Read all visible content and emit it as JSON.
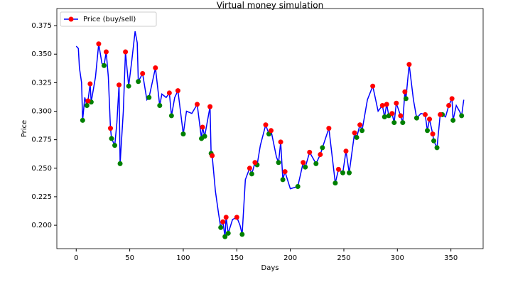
{
  "chart_data": {
    "type": "line",
    "title": "Virtual money simulation",
    "x_label": "Days",
    "y_label": "Price",
    "series": [
      {
        "name": "Price (buy/sell)",
        "color": "#0000ff",
        "x": [
          0,
          2,
          3,
          5,
          6,
          8,
          10,
          11,
          13,
          14,
          18,
          21,
          24,
          26,
          28,
          30,
          32,
          33,
          36,
          38,
          40,
          41,
          44,
          46,
          49,
          52,
          55,
          57,
          58,
          62,
          66,
          68,
          71,
          74,
          78,
          80,
          84,
          87,
          89,
          92,
          95,
          100,
          103,
          108,
          113,
          117,
          118,
          120,
          125,
          126,
          127,
          130,
          133,
          135,
          137,
          139,
          140,
          142,
          146,
          150,
          153,
          155,
          158,
          162,
          164,
          167,
          169,
          172,
          177,
          180,
          182,
          187,
          189,
          191,
          193,
          195,
          200,
          207,
          212,
          214,
          218,
          224,
          228,
          230,
          236,
          242,
          245,
          249,
          252,
          255,
          260,
          262,
          265,
          267,
          272,
          277,
          282,
          286,
          288,
          290,
          292,
          295,
          297,
          299,
          303,
          305,
          307,
          308,
          311,
          315,
          318,
          322,
          326,
          328,
          330,
          333,
          334,
          337,
          340,
          342,
          345,
          348,
          351,
          352,
          355,
          358,
          360,
          362
        ],
        "values": [
          0.357,
          0.355,
          0.338,
          0.325,
          0.292,
          0.312,
          0.305,
          0.309,
          0.324,
          0.308,
          0.33,
          0.359,
          0.342,
          0.34,
          0.352,
          0.33,
          0.285,
          0.276,
          0.27,
          0.29,
          0.323,
          0.254,
          0.3,
          0.352,
          0.322,
          0.345,
          0.37,
          0.36,
          0.326,
          0.333,
          0.31,
          0.312,
          0.325,
          0.338,
          0.305,
          0.315,
          0.312,
          0.316,
          0.296,
          0.312,
          0.318,
          0.28,
          0.3,
          0.298,
          0.306,
          0.276,
          0.286,
          0.278,
          0.304,
          0.263,
          0.261,
          0.23,
          0.21,
          0.198,
          0.203,
          0.19,
          0.207,
          0.193,
          0.205,
          0.207,
          0.2,
          0.192,
          0.24,
          0.25,
          0.245,
          0.255,
          0.253,
          0.27,
          0.288,
          0.28,
          0.283,
          0.26,
          0.255,
          0.273,
          0.24,
          0.247,
          0.232,
          0.234,
          0.255,
          0.251,
          0.264,
          0.254,
          0.262,
          0.268,
          0.285,
          0.237,
          0.249,
          0.246,
          0.265,
          0.246,
          0.281,
          0.277,
          0.288,
          0.283,
          0.31,
          0.322,
          0.3,
          0.305,
          0.295,
          0.306,
          0.296,
          0.298,
          0.29,
          0.307,
          0.296,
          0.29,
          0.317,
          0.311,
          0.341,
          0.31,
          0.294,
          0.298,
          0.297,
          0.283,
          0.293,
          0.28,
          0.274,
          0.268,
          0.297,
          0.297,
          0.295,
          0.305,
          0.311,
          0.292,
          0.305,
          0.3,
          0.296,
          0.31
        ]
      }
    ],
    "markers": [
      {
        "color": "#008000",
        "x": [
          6,
          10,
          14,
          26,
          33,
          36,
          41,
          49,
          58,
          68,
          78,
          89,
          100,
          117,
          120,
          126,
          135,
          139,
          142,
          155,
          164,
          169,
          180,
          189,
          193,
          207,
          214,
          224,
          230,
          242,
          249,
          255,
          262,
          267,
          288,
          292,
          297,
          305,
          308,
          318,
          328,
          334,
          337,
          342,
          352,
          360
        ],
        "values": [
          0.292,
          0.305,
          0.308,
          0.34,
          0.276,
          0.27,
          0.254,
          0.322,
          0.326,
          0.312,
          0.305,
          0.296,
          0.28,
          0.276,
          0.278,
          0.263,
          0.198,
          0.19,
          0.193,
          0.192,
          0.245,
          0.253,
          0.28,
          0.255,
          0.24,
          0.234,
          0.251,
          0.254,
          0.268,
          0.237,
          0.246,
          0.246,
          0.277,
          0.283,
          0.295,
          0.296,
          0.29,
          0.29,
          0.311,
          0.294,
          0.283,
          0.274,
          0.268,
          0.297,
          0.292,
          0.296
        ]
      },
      {
        "color": "#ff0000",
        "x": [
          11,
          13,
          21,
          28,
          32,
          40,
          46,
          62,
          74,
          87,
          95,
          113,
          118,
          125,
          127,
          137,
          140,
          150,
          162,
          167,
          177,
          182,
          191,
          195,
          212,
          218,
          228,
          236,
          245,
          252,
          260,
          265,
          277,
          286,
          290,
          295,
          299,
          303,
          307,
          311,
          326,
          330,
          333,
          340,
          348,
          351
        ],
        "values": [
          0.309,
          0.324,
          0.359,
          0.352,
          0.285,
          0.323,
          0.352,
          0.333,
          0.338,
          0.316,
          0.318,
          0.306,
          0.286,
          0.304,
          0.261,
          0.203,
          0.207,
          0.207,
          0.25,
          0.255,
          0.288,
          0.283,
          0.273,
          0.247,
          0.255,
          0.264,
          0.262,
          0.285,
          0.249,
          0.265,
          0.281,
          0.288,
          0.322,
          0.305,
          0.306,
          0.298,
          0.307,
          0.296,
          0.317,
          0.341,
          0.297,
          0.293,
          0.28,
          0.297,
          0.305,
          0.311
        ]
      }
    ],
    "xlim": [
      -18.1,
      380.1
    ],
    "ylim": [
      0.1795,
      0.39
    ],
    "xticks": [
      0,
      50,
      100,
      150,
      200,
      250,
      300,
      350
    ],
    "yticks": [
      {
        "value": 0.2,
        "label": "0.200"
      },
      0.225,
      {
        "value": 0.25,
        "label": "0.250"
      },
      0.275,
      {
        "value": 0.3,
        "label": "0.300"
      },
      0.325,
      {
        "value": 0.35,
        "label": "0.350"
      },
      0.375
    ],
    "legend": "upper left",
    "grid": false
  }
}
